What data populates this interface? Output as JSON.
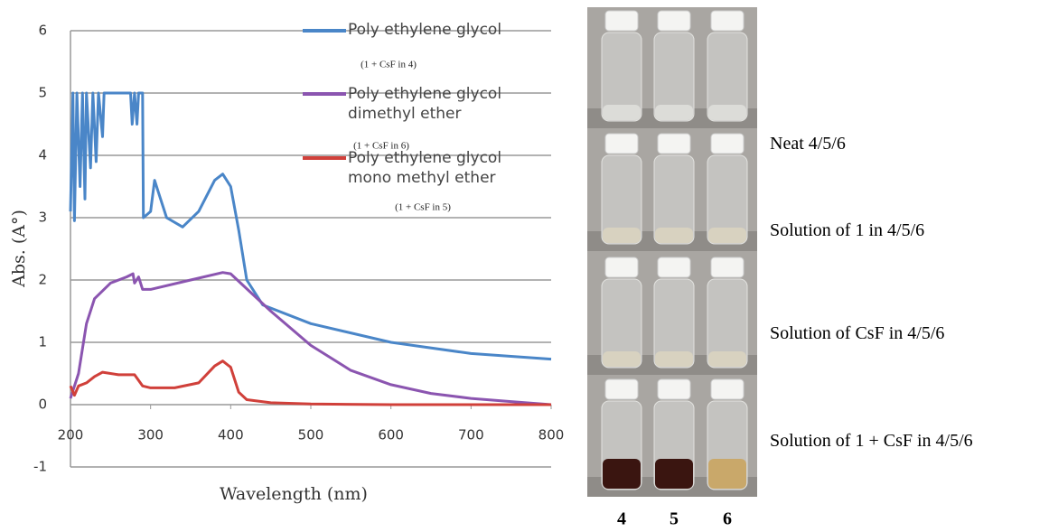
{
  "chart_data": {
    "type": "line",
    "x_label": "Wavelength (nm)",
    "y_label": "Abs. (A°)",
    "xlim": [
      200,
      800
    ],
    "ylim": [
      -1,
      6
    ],
    "xticks": [
      200,
      300,
      400,
      500,
      600,
      700,
      800
    ],
    "yticks": [
      -1,
      0,
      1,
      2,
      3,
      4,
      5,
      6
    ],
    "grid": true,
    "series": [
      {
        "name": "Poly ethylene glycol",
        "color": "#4a86c8",
        "x": [
          200,
          203,
          205,
          208,
          212,
          215,
          218,
          220,
          225,
          228,
          232,
          235,
          240,
          242,
          275,
          277,
          280,
          283,
          285,
          290,
          291,
          300,
          305,
          310,
          320,
          340,
          360,
          380,
          390,
          400,
          410,
          420,
          440,
          500,
          600,
          700,
          800
        ],
        "values": [
          3.1,
          5,
          2.95,
          5,
          3.5,
          5,
          3.3,
          5,
          3.8,
          5,
          3.9,
          5,
          4.3,
          5,
          5,
          4.5,
          5,
          4.5,
          5,
          5,
          3.0,
          3.1,
          3.6,
          3.4,
          3.0,
          2.85,
          3.1,
          3.6,
          3.7,
          3.5,
          2.8,
          2.0,
          1.6,
          1.3,
          1.0,
          0.82,
          0.73
        ]
      },
      {
        "name": "Poly ethylene glycol dimethyl ether",
        "color": "#8b55b0",
        "x": [
          200,
          210,
          220,
          230,
          250,
          270,
          278,
          280,
          285,
          290,
          300,
          350,
          390,
          400,
          450,
          500,
          550,
          600,
          650,
          700,
          750,
          800
        ],
        "values": [
          0.1,
          0.5,
          1.3,
          1.7,
          1.95,
          2.05,
          2.1,
          1.95,
          2.05,
          1.85,
          1.85,
          2.0,
          2.12,
          2.1,
          1.5,
          0.95,
          0.55,
          0.32,
          0.18,
          0.1,
          0.05,
          0.0
        ]
      },
      {
        "name": "Poly ethylene glycol mono methyl ether",
        "color": "#d0403a",
        "x": [
          200,
          205,
          210,
          220,
          230,
          240,
          260,
          280,
          290,
          300,
          330,
          360,
          380,
          390,
          400,
          410,
          420,
          450,
          500,
          600,
          700,
          800
        ],
        "values": [
          0.3,
          0.15,
          0.3,
          0.35,
          0.45,
          0.52,
          0.48,
          0.48,
          0.3,
          0.27,
          0.27,
          0.35,
          0.62,
          0.7,
          0.6,
          0.2,
          0.08,
          0.03,
          0.01,
          0,
          0,
          0
        ]
      }
    ],
    "annotations": [
      "(1 + CsF in 4)",
      "(1 + CsF in 6)",
      "(1 + CsF in 5)"
    ]
  },
  "photo": {
    "row_labels": [
      "Neat 4/5/6",
      "Solution of 1 in 4/5/6",
      "Solution of CsF in 4/5/6",
      "Solution of 1 + CsF  in 4/5/6"
    ],
    "column_labels": [
      "4",
      "5",
      "6"
    ]
  }
}
